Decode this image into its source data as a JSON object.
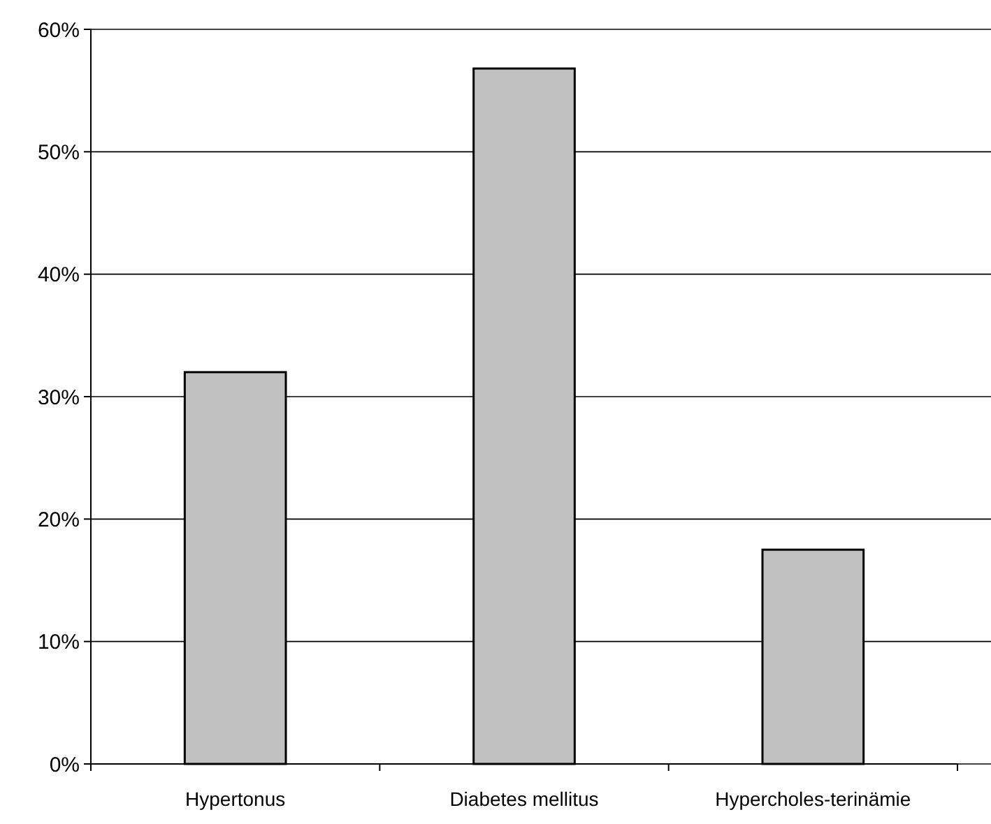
{
  "chart_data": {
    "type": "bar",
    "categories": [
      "Hypertonus",
      "Diabetes mellitus",
      "Hypercholes-terinämie"
    ],
    "values": [
      32,
      56.8,
      17.5
    ],
    "color": "#c0c0c0",
    "ylim": [
      0,
      60
    ],
    "yticks": [
      {
        "value": 0,
        "label": "0%"
      },
      {
        "value": 10,
        "label": "10%"
      },
      {
        "value": 20,
        "label": "20%"
      },
      {
        "value": 30,
        "label": "30%"
      },
      {
        "value": 40,
        "label": "40%"
      },
      {
        "value": 50,
        "label": "50%"
      },
      {
        "value": 60,
        "label": "60%"
      }
    ],
    "grid": "y"
  }
}
